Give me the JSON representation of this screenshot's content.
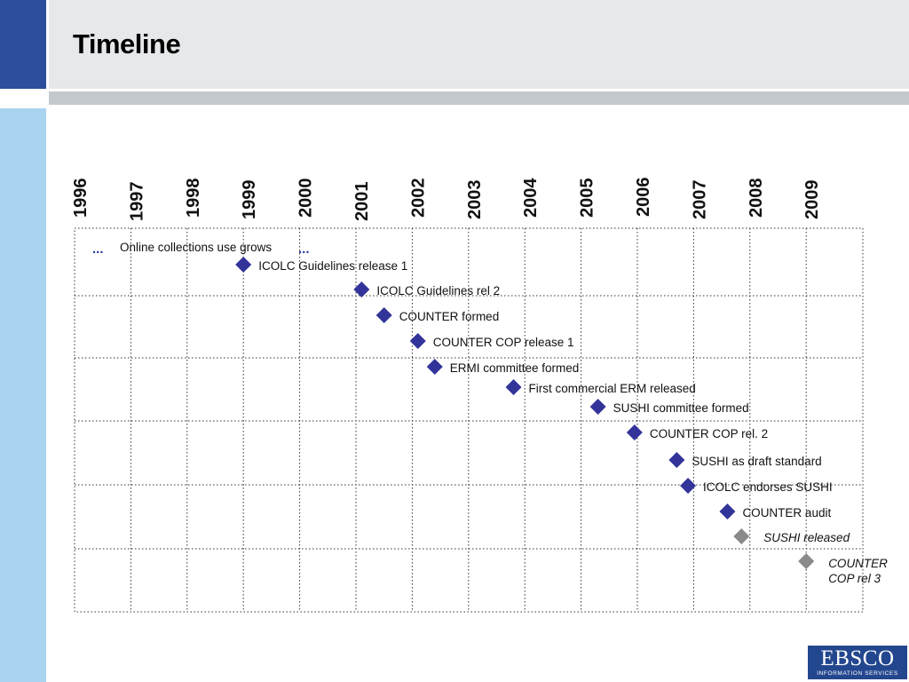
{
  "slide": {
    "title": "Timeline"
  },
  "logo": {
    "brand": "EBSCO",
    "tagline": "INFORMATION SERVICES",
    "colors": {
      "background": "#23478f",
      "text": "#ffffff"
    }
  },
  "colors": {
    "accent_dark_blue": "#2d4e9c",
    "accent_light_blue": "#a9d3f0",
    "header_gray": "#e6e8ea",
    "milestone_blue": "#33349a",
    "milestone_gray": "#8a8a8a"
  },
  "chart_data": {
    "type": "timeline",
    "years": [
      "1996",
      "1997",
      "1998",
      "1999",
      "2000",
      "2001",
      "2002",
      "2003",
      "2004",
      "2005",
      "2006",
      "2007",
      "2008",
      "2009"
    ],
    "ongoing_trend": {
      "label": "Online collections use grows",
      "prefix": "...",
      "suffix": "...",
      "start_year": 1996.5,
      "end_year": 2000.2
    },
    "events": [
      {
        "label": "ICOLC Guidelines release 1",
        "year": 1999.0,
        "status": "past"
      },
      {
        "label": "ICOLC Guidelines rel 2",
        "year": 2001.1,
        "status": "past"
      },
      {
        "label": "COUNTER formed",
        "year": 2001.5,
        "status": "past"
      },
      {
        "label": "COUNTER COP release 1",
        "year": 2002.1,
        "status": "past"
      },
      {
        "label": "ERMI committee formed",
        "year": 2002.4,
        "status": "past"
      },
      {
        "label": "First commercial ERM released",
        "year": 2003.8,
        "status": "past"
      },
      {
        "label": "SUSHI committee formed",
        "year": 2005.3,
        "status": "past"
      },
      {
        "label": "COUNTER COP rel. 2",
        "year": 2005.95,
        "status": "past"
      },
      {
        "label": "SUSHI  as draft standard",
        "year": 2006.7,
        "status": "past"
      },
      {
        "label": "ICOLC endorses SUSHI",
        "year": 2006.9,
        "status": "past"
      },
      {
        "label": "COUNTER audit",
        "year": 2007.6,
        "status": "past"
      },
      {
        "label": "SUSHI released",
        "year": 2007.85,
        "status": "planned"
      },
      {
        "label": "COUNTER COP rel 3",
        "label_lines": [
          "COUNTER",
          "COP rel 3"
        ],
        "year": 2009.0,
        "status": "planned"
      }
    ],
    "legend": {
      "past": "filled blue diamond",
      "planned": "gray diamond, italic label"
    },
    "grid": true
  }
}
